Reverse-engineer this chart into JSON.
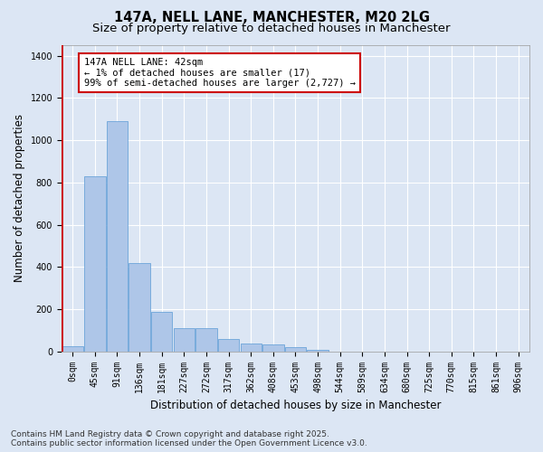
{
  "title_line1": "147A, NELL LANE, MANCHESTER, M20 2LG",
  "title_line2": "Size of property relative to detached houses in Manchester",
  "xlabel": "Distribution of detached houses by size in Manchester",
  "ylabel": "Number of detached properties",
  "bins": [
    "0sqm",
    "45sqm",
    "91sqm",
    "136sqm",
    "181sqm",
    "227sqm",
    "272sqm",
    "317sqm",
    "362sqm",
    "408sqm",
    "453sqm",
    "498sqm",
    "544sqm",
    "589sqm",
    "634sqm",
    "680sqm",
    "725sqm",
    "770sqm",
    "815sqm",
    "861sqm",
    "906sqm"
  ],
  "values": [
    25,
    830,
    1090,
    420,
    185,
    108,
    108,
    60,
    38,
    35,
    18,
    8,
    0,
    0,
    0,
    0,
    0,
    0,
    0,
    0
  ],
  "bar_color": "#aec6e8",
  "bar_edge_color": "#5b9bd5",
  "highlight_edge_color": "#cc0000",
  "annotation_text": "147A NELL LANE: 42sqm\n← 1% of detached houses are smaller (17)\n99% of semi-detached houses are larger (2,727) →",
  "annotation_box_color": "#ffffff",
  "annotation_box_edge_color": "#cc0000",
  "ylim": [
    0,
    1450
  ],
  "yticks": [
    0,
    200,
    400,
    600,
    800,
    1000,
    1200,
    1400
  ],
  "background_color": "#dce6f4",
  "plot_background": "#dce6f4",
  "grid_color": "#ffffff",
  "footnote": "Contains HM Land Registry data © Crown copyright and database right 2025.\nContains public sector information licensed under the Open Government Licence v3.0.",
  "title_fontsize": 10.5,
  "subtitle_fontsize": 9.5,
  "axis_label_fontsize": 8.5,
  "tick_fontsize": 7,
  "annotation_fontsize": 7.5,
  "footnote_fontsize": 6.5
}
